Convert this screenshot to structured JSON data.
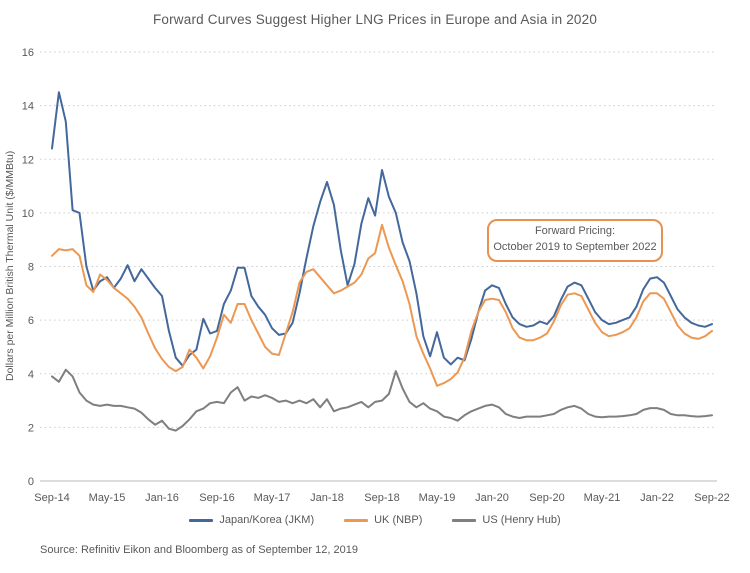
{
  "title": "Forward Curves Suggest Higher LNG Prices in Europe and Asia in 2020",
  "source_note": "Source: Refinitiv Eikon and Bloomberg as of September 12, 2019",
  "colors": {
    "jkm_blue": "#44689B",
    "nbp_orange": "#EC9853",
    "henry_hub_gray": "#7F7F7F",
    "text_gray": "#595959",
    "gridline_gray": "#CBCBCB",
    "axis_line_gray": "#B9B9B9",
    "annotation_border_orange": "#E9914E"
  },
  "chart_data": {
    "type": "line",
    "title": "Forward Curves Suggest Higher LNG Prices in Europe and Asia in 2020",
    "xlabel": "",
    "ylabel": "Dollars per Million British Thermal Unit ($/MMBtu)",
    "ylim": [
      0,
      16
    ],
    "y_ticks": [
      0,
      2,
      4,
      6,
      8,
      10,
      12,
      14,
      16
    ],
    "grid": "dotted horizontal gridlines, solid zero axis",
    "legend_position": "bottom",
    "x_unit": "monthly, Sep-2014 through Sep-2022",
    "n_points": 97,
    "x_tick_labels": [
      "Sep-14",
      "May-15",
      "Jan-16",
      "Sep-16",
      "May-17",
      "Jan-18",
      "Sep-18",
      "May-19",
      "Jan-20",
      "Sep-20",
      "May-21",
      "Jan-22",
      "Sep-22"
    ],
    "x_tick_indices": [
      0,
      8,
      16,
      24,
      32,
      40,
      48,
      56,
      64,
      72,
      80,
      88,
      96
    ],
    "annotation": {
      "line1": "Forward Pricing:",
      "line2": "October 2019 to September 2022"
    },
    "series": [
      {
        "name": "Japan/Korea (JKM)",
        "color": "#44689B",
        "values": [
          12.4,
          14.5,
          13.4,
          10.1,
          10.0,
          8.0,
          7.1,
          7.45,
          7.6,
          7.2,
          7.55,
          8.05,
          7.45,
          7.9,
          7.55,
          7.2,
          6.9,
          5.6,
          4.6,
          4.3,
          4.7,
          4.9,
          6.05,
          5.5,
          5.6,
          6.6,
          7.1,
          7.95,
          7.95,
          6.9,
          6.5,
          6.2,
          5.7,
          5.45,
          5.5,
          5.9,
          7.0,
          8.3,
          9.5,
          10.4,
          11.15,
          10.3,
          8.6,
          7.3,
          8.1,
          9.6,
          10.55,
          9.9,
          11.6,
          10.6,
          10.0,
          8.9,
          8.2,
          7.0,
          5.4,
          4.65,
          5.55,
          4.6,
          4.35,
          4.6,
          4.5,
          5.3,
          6.3,
          7.1,
          7.3,
          7.2,
          6.6,
          6.1,
          5.85,
          5.75,
          5.8,
          5.95,
          5.85,
          6.15,
          6.75,
          7.25,
          7.4,
          7.3,
          6.8,
          6.3,
          6.0,
          5.85,
          5.9,
          6.0,
          6.1,
          6.5,
          7.15,
          7.55,
          7.6,
          7.4,
          6.9,
          6.4,
          6.1,
          5.9,
          5.8,
          5.75,
          5.85
        ]
      },
      {
        "name": "UK (NBP)",
        "color": "#EC9853",
        "values": [
          8.4,
          8.65,
          8.6,
          8.65,
          8.4,
          7.3,
          7.05,
          7.7,
          7.5,
          7.2,
          7.0,
          6.8,
          6.5,
          6.1,
          5.5,
          4.95,
          4.55,
          4.25,
          4.1,
          4.25,
          4.9,
          4.6,
          4.2,
          4.65,
          5.35,
          6.2,
          5.9,
          6.6,
          6.6,
          6.0,
          5.5,
          5.0,
          4.75,
          4.7,
          5.5,
          6.3,
          7.4,
          7.8,
          7.9,
          7.6,
          7.3,
          7.0,
          7.1,
          7.25,
          7.4,
          7.7,
          8.3,
          8.5,
          9.55,
          8.7,
          8.05,
          7.45,
          6.6,
          5.4,
          4.75,
          4.2,
          3.55,
          3.65,
          3.8,
          4.05,
          4.6,
          5.6,
          6.3,
          6.75,
          6.8,
          6.75,
          6.3,
          5.7,
          5.35,
          5.25,
          5.25,
          5.35,
          5.5,
          5.95,
          6.55,
          6.95,
          7.0,
          6.9,
          6.4,
          5.9,
          5.55,
          5.4,
          5.45,
          5.55,
          5.7,
          6.1,
          6.7,
          7.0,
          7.0,
          6.8,
          6.3,
          5.8,
          5.5,
          5.35,
          5.3,
          5.4,
          5.6
        ]
      },
      {
        "name": "US (Henry Hub)",
        "color": "#7F7F7F",
        "values": [
          3.9,
          3.7,
          4.15,
          3.9,
          3.3,
          3.0,
          2.85,
          2.8,
          2.85,
          2.8,
          2.8,
          2.75,
          2.7,
          2.55,
          2.3,
          2.1,
          2.25,
          1.95,
          1.88,
          2.05,
          2.3,
          2.6,
          2.7,
          2.9,
          2.95,
          2.9,
          3.3,
          3.5,
          3.0,
          3.15,
          3.1,
          3.2,
          3.1,
          2.95,
          3.0,
          2.9,
          3.0,
          2.9,
          3.05,
          2.75,
          3.05,
          2.6,
          2.7,
          2.75,
          2.85,
          2.95,
          2.75,
          2.95,
          3.0,
          3.25,
          4.1,
          3.45,
          2.95,
          2.75,
          2.9,
          2.7,
          2.6,
          2.4,
          2.35,
          2.25,
          2.45,
          2.6,
          2.7,
          2.8,
          2.85,
          2.75,
          2.5,
          2.4,
          2.35,
          2.4,
          2.4,
          2.4,
          2.45,
          2.5,
          2.65,
          2.75,
          2.8,
          2.7,
          2.5,
          2.4,
          2.38,
          2.4,
          2.4,
          2.42,
          2.45,
          2.5,
          2.65,
          2.72,
          2.72,
          2.65,
          2.5,
          2.45,
          2.45,
          2.42,
          2.4,
          2.42,
          2.45
        ]
      }
    ]
  }
}
